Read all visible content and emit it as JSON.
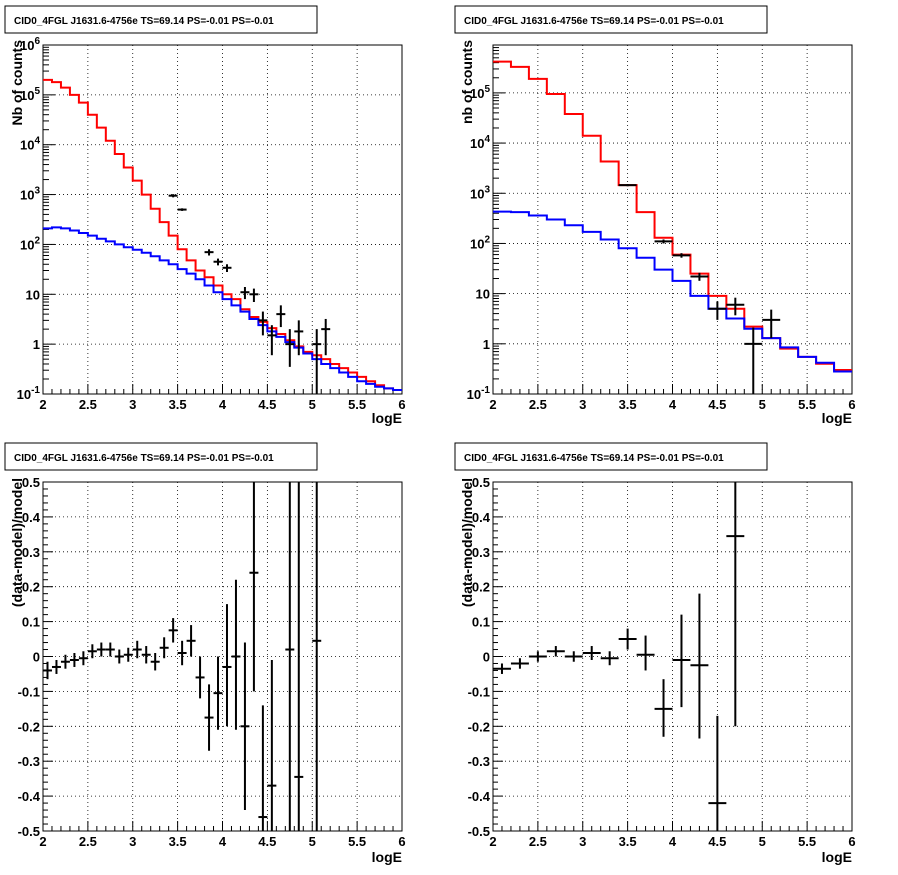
{
  "chart_data": [
    {
      "type": "line",
      "title": "CID0_4FGL J1631.6-4756e TS=69.14 PS=-0.01 PS=-0.01",
      "xlabel": "logE",
      "ylabel": "Nb of counts",
      "xlim": [
        2,
        6
      ],
      "ylim": [
        0.1,
        1000000
      ],
      "log_y": true,
      "grid": true,
      "x_ticks": [
        "2",
        "2.5",
        "3",
        "3.5",
        "4",
        "4.5",
        "5",
        "5.5",
        "6"
      ],
      "y_ticks": [
        "10^{-1}",
        "1",
        "10",
        "10^{2}",
        "10^{3}",
        "10^{4}",
        "10^{5}",
        "10^{6}"
      ],
      "series": [
        {
          "color": "#ff0000",
          "kind": "step",
          "bin_edges": [
            2.0,
            2.1,
            2.2,
            2.3,
            2.4,
            2.5,
            2.6,
            2.7,
            2.8,
            2.9,
            3.0,
            3.1,
            3.2,
            3.3,
            3.4,
            3.5,
            3.6,
            3.7,
            3.8,
            3.9,
            4.0,
            4.1,
            4.2,
            4.3,
            4.4,
            4.5,
            4.6,
            4.7,
            4.8,
            4.9,
            5.0,
            5.1,
            5.2,
            5.3,
            5.4,
            5.5,
            5.6,
            5.7,
            5.8,
            5.9,
            6.0
          ],
          "values": [
            200000,
            180000,
            140000,
            100000,
            70000,
            40000,
            22000,
            12000,
            6500,
            3500,
            1900,
            1000,
            520,
            280,
            150,
            80,
            48,
            30,
            22,
            15,
            10,
            8,
            5,
            3.5,
            2.8,
            2.1,
            1.6,
            1.2,
            0.9,
            0.7,
            0.6,
            0.5,
            0.4,
            0.33,
            0.27,
            0.22,
            0.18,
            0.15,
            0.13,
            0.12
          ]
        },
        {
          "color": "#0000ff",
          "kind": "step",
          "bin_edges": [
            2.0,
            2.1,
            2.2,
            2.3,
            2.4,
            2.5,
            2.6,
            2.7,
            2.8,
            2.9,
            3.0,
            3.1,
            3.2,
            3.3,
            3.4,
            3.5,
            3.6,
            3.7,
            3.8,
            3.9,
            4.0,
            4.1,
            4.2,
            4.3,
            4.4,
            4.5,
            4.6,
            4.7,
            4.8,
            4.9,
            5.0,
            5.1,
            5.2,
            5.3,
            5.4,
            5.5,
            5.6,
            5.7,
            5.8,
            5.9,
            6.0
          ],
          "values": [
            210,
            220,
            210,
            190,
            170,
            150,
            130,
            115,
            100,
            88,
            78,
            68,
            58,
            48,
            40,
            32,
            26,
            20,
            15,
            11,
            8,
            6,
            4.5,
            3.2,
            2.4,
            1.8,
            1.4,
            1.1,
            0.85,
            0.65,
            0.5,
            0.4,
            0.33,
            0.27,
            0.22,
            0.18,
            0.16,
            0.14,
            0.13,
            0.12
          ]
        }
      ],
      "data_points": [
        {
          "x": 3.45,
          "y": 950,
          "ylo": 880,
          "yhi": 1020,
          "xerr": 0.05
        },
        {
          "x": 3.55,
          "y": 500,
          "ylo": 470,
          "yhi": 530,
          "xerr": 0.05
        },
        {
          "x": 3.85,
          "y": 70,
          "ylo": 60,
          "yhi": 80,
          "xerr": 0.05
        },
        {
          "x": 3.95,
          "y": 45,
          "ylo": 38,
          "yhi": 52,
          "xerr": 0.05
        },
        {
          "x": 4.05,
          "y": 34,
          "ylo": 28,
          "yhi": 40,
          "xerr": 0.05
        },
        {
          "x": 4.25,
          "y": 11,
          "ylo": 8,
          "yhi": 14,
          "xerr": 0.05
        },
        {
          "x": 4.35,
          "y": 10,
          "ylo": 7,
          "yhi": 13,
          "xerr": 0.05
        },
        {
          "x": 4.45,
          "y": 3,
          "ylo": 1.5,
          "yhi": 4.5,
          "xerr": 0.05
        },
        {
          "x": 4.55,
          "y": 1.5,
          "ylo": 0.6,
          "yhi": 2.4,
          "xerr": 0.05
        },
        {
          "x": 4.65,
          "y": 4,
          "ylo": 2.2,
          "yhi": 6,
          "xerr": 0.05
        },
        {
          "x": 4.75,
          "y": 1,
          "ylo": 0.35,
          "yhi": 2,
          "xerr": 0.05
        },
        {
          "x": 4.85,
          "y": 1.8,
          "ylo": 0.6,
          "yhi": 3,
          "xerr": 0.05
        },
        {
          "x": 5.05,
          "y": 1,
          "ylo": 0.1,
          "yhi": 2,
          "xerr": 0.05
        },
        {
          "x": 5.15,
          "y": 2,
          "ylo": 0.6,
          "yhi": 3.2,
          "xerr": 0.05
        }
      ]
    },
    {
      "type": "line",
      "title": "CID0_4FGL J1631.6-4756e TS=69.14 PS=-0.01 PS=-0.01",
      "xlabel": "logE",
      "ylabel": "nb of counts",
      "xlim": [
        2,
        6
      ],
      "ylim": [
        0.1,
        900000
      ],
      "log_y": true,
      "grid": true,
      "x_ticks": [
        "2",
        "2.5",
        "3",
        "3.5",
        "4",
        "4.5",
        "5",
        "5.5",
        "6"
      ],
      "y_ticks": [
        "10^{-1}",
        "1",
        "10",
        "10^{2}",
        "10^{3}",
        "10^{4}",
        "10^{5}"
      ],
      "series": [
        {
          "color": "#ff0000",
          "kind": "step",
          "bin_edges": [
            2.0,
            2.2,
            2.4,
            2.6,
            2.8,
            3.0,
            3.2,
            3.4,
            3.6,
            3.8,
            4.0,
            4.2,
            4.4,
            4.6,
            4.8,
            5.0,
            5.2,
            5.4,
            5.6,
            5.8,
            6.0
          ],
          "values": [
            420000,
            330000,
            190000,
            95000,
            38000,
            14000,
            4300,
            1450,
            420,
            130,
            60,
            25,
            9,
            5,
            2.2,
            1.3,
            0.8,
            0.55,
            0.4,
            0.3
          ]
        },
        {
          "color": "#0000ff",
          "kind": "step",
          "bin_edges": [
            2.0,
            2.2,
            2.4,
            2.6,
            2.8,
            3.0,
            3.2,
            3.4,
            3.6,
            3.8,
            4.0,
            4.2,
            4.4,
            4.6,
            4.8,
            5.0,
            5.2,
            5.4,
            5.6,
            5.8,
            6.0
          ],
          "values": [
            430,
            420,
            360,
            300,
            230,
            170,
            120,
            80,
            52,
            30,
            18,
            9,
            5,
            3.2,
            2,
            1.3,
            0.85,
            0.55,
            0.42,
            0.28
          ]
        }
      ],
      "data_points": [
        {
          "x": 3.5,
          "y": 1450,
          "ylo": 1380,
          "yhi": 1520,
          "xerr": 0.1
        },
        {
          "x": 3.9,
          "y": 110,
          "ylo": 100,
          "yhi": 120,
          "xerr": 0.1
        },
        {
          "x": 4.1,
          "y": 58,
          "ylo": 52,
          "yhi": 64,
          "xerr": 0.1
        },
        {
          "x": 4.3,
          "y": 22,
          "ylo": 18,
          "yhi": 26,
          "xerr": 0.1
        },
        {
          "x": 4.5,
          "y": 5,
          "ylo": 3,
          "yhi": 7,
          "xerr": 0.1
        },
        {
          "x": 4.7,
          "y": 6,
          "ylo": 3.7,
          "yhi": 8.3,
          "xerr": 0.1
        },
        {
          "x": 4.9,
          "y": 1,
          "ylo": 0.1,
          "yhi": 2.1,
          "xerr": 0.1
        },
        {
          "x": 5.1,
          "y": 3,
          "ylo": 1.3,
          "yhi": 4.8,
          "xerr": 0.1
        }
      ]
    },
    {
      "type": "scatter",
      "title": "CID0_4FGL J1631.6-4756e TS=69.14 PS=-0.01 PS=-0.01",
      "xlabel": "logE",
      "ylabel": "(data-model)/model",
      "xlim": [
        2,
        6
      ],
      "ylim": [
        -0.5,
        0.5
      ],
      "log_y": false,
      "grid": true,
      "x_ticks": [
        "2",
        "2.5",
        "3",
        "3.5",
        "4",
        "4.5",
        "5",
        "5.5",
        "6"
      ],
      "y_ticks": [
        "-0.5",
        "-0.4",
        "-0.3",
        "-0.2",
        "-0.1",
        "0",
        "0.1",
        "0.2",
        "0.3",
        "0.4",
        "0.5"
      ],
      "data_points": [
        {
          "x": 2.05,
          "y": -0.04,
          "ylo": -0.065,
          "yhi": -0.015,
          "xerr": 0.05
        },
        {
          "x": 2.15,
          "y": -0.03,
          "ylo": -0.05,
          "yhi": -0.01,
          "xerr": 0.05
        },
        {
          "x": 2.25,
          "y": -0.015,
          "ylo": -0.035,
          "yhi": 0.005,
          "xerr": 0.05
        },
        {
          "x": 2.35,
          "y": -0.01,
          "ylo": -0.03,
          "yhi": 0.01,
          "xerr": 0.05
        },
        {
          "x": 2.45,
          "y": -0.005,
          "ylo": -0.025,
          "yhi": 0.015,
          "xerr": 0.05
        },
        {
          "x": 2.55,
          "y": 0.015,
          "ylo": -0.005,
          "yhi": 0.035,
          "xerr": 0.05
        },
        {
          "x": 2.65,
          "y": 0.02,
          "ylo": 0.0,
          "yhi": 0.04,
          "xerr": 0.05
        },
        {
          "x": 2.75,
          "y": 0.02,
          "ylo": 0.0,
          "yhi": 0.04,
          "xerr": 0.05
        },
        {
          "x": 2.85,
          "y": 0.0,
          "ylo": -0.02,
          "yhi": 0.02,
          "xerr": 0.05
        },
        {
          "x": 2.95,
          "y": 0.005,
          "ylo": -0.015,
          "yhi": 0.025,
          "xerr": 0.05
        },
        {
          "x": 3.05,
          "y": 0.02,
          "ylo": -0.005,
          "yhi": 0.045,
          "xerr": 0.05
        },
        {
          "x": 3.15,
          "y": 0.005,
          "ylo": -0.02,
          "yhi": 0.03,
          "xerr": 0.05
        },
        {
          "x": 3.25,
          "y": -0.015,
          "ylo": -0.04,
          "yhi": 0.01,
          "xerr": 0.05
        },
        {
          "x": 3.35,
          "y": 0.025,
          "ylo": -0.005,
          "yhi": 0.055,
          "xerr": 0.05
        },
        {
          "x": 3.45,
          "y": 0.075,
          "ylo": 0.04,
          "yhi": 0.11,
          "xerr": 0.05
        },
        {
          "x": 3.55,
          "y": 0.01,
          "ylo": -0.025,
          "yhi": 0.045,
          "xerr": 0.05
        },
        {
          "x": 3.65,
          "y": 0.045,
          "ylo": 0.0,
          "yhi": 0.09,
          "xerr": 0.05
        },
        {
          "x": 3.75,
          "y": -0.06,
          "ylo": -0.12,
          "yhi": 0.0,
          "xerr": 0.05
        },
        {
          "x": 3.85,
          "y": -0.175,
          "ylo": -0.27,
          "yhi": -0.08,
          "xerr": 0.05
        },
        {
          "x": 3.95,
          "y": -0.105,
          "ylo": -0.21,
          "yhi": 0.0,
          "xerr": 0.05
        },
        {
          "x": 4.05,
          "y": -0.03,
          "ylo": -0.2,
          "yhi": 0.15,
          "xerr": 0.05
        },
        {
          "x": 4.15,
          "y": 0.0,
          "ylo": -0.21,
          "yhi": 0.22,
          "xerr": 0.05
        },
        {
          "x": 4.25,
          "y": -0.2,
          "ylo": -0.44,
          "yhi": 0.04,
          "xerr": 0.05
        },
        {
          "x": 4.35,
          "y": 0.24,
          "ylo": -0.1,
          "yhi": 0.5,
          "xerr": 0.05
        },
        {
          "x": 4.45,
          "y": -0.46,
          "ylo": -0.5,
          "yhi": -0.14,
          "xerr": 0.05
        },
        {
          "x": 4.55,
          "y": -0.37,
          "ylo": -0.5,
          "yhi": -0.01,
          "xerr": 0.05
        },
        {
          "x": 4.75,
          "y": 0.02,
          "ylo": -0.5,
          "yhi": 0.5,
          "xerr": 0.05
        },
        {
          "x": 4.85,
          "y": -0.345,
          "ylo": -0.5,
          "yhi": 0.5,
          "xerr": 0.05
        },
        {
          "x": 5.05,
          "y": 0.045,
          "ylo": -0.5,
          "yhi": 0.5,
          "xerr": 0.05
        }
      ]
    },
    {
      "type": "scatter",
      "title": "CID0_4FGL J1631.6-4756e TS=69.14 PS=-0.01 PS=-0.01",
      "xlabel": "logE",
      "ylabel": "(data-model)/model",
      "xlim": [
        2,
        6
      ],
      "ylim": [
        -0.5,
        0.5
      ],
      "log_y": false,
      "grid": true,
      "x_ticks": [
        "2",
        "2.5",
        "3",
        "3.5",
        "4",
        "4.5",
        "5",
        "5.5",
        "6"
      ],
      "y_ticks": [
        "-0.5",
        "-0.4",
        "-0.3",
        "-0.2",
        "-0.1",
        "0",
        "0.1",
        "0.2",
        "0.3",
        "0.4",
        "0.5"
      ],
      "data_points": [
        {
          "x": 2.1,
          "y": -0.035,
          "ylo": -0.05,
          "yhi": -0.02,
          "xerr": 0.1
        },
        {
          "x": 2.3,
          "y": -0.02,
          "ylo": -0.035,
          "yhi": -0.005,
          "xerr": 0.1
        },
        {
          "x": 2.5,
          "y": 0.0,
          "ylo": -0.015,
          "yhi": 0.015,
          "xerr": 0.1
        },
        {
          "x": 2.7,
          "y": 0.015,
          "ylo": 0.0,
          "yhi": 0.03,
          "xerr": 0.1
        },
        {
          "x": 2.9,
          "y": 0.0,
          "ylo": -0.015,
          "yhi": 0.015,
          "xerr": 0.1
        },
        {
          "x": 3.1,
          "y": 0.01,
          "ylo": -0.01,
          "yhi": 0.03,
          "xerr": 0.1
        },
        {
          "x": 3.3,
          "y": -0.005,
          "ylo": -0.025,
          "yhi": 0.015,
          "xerr": 0.1
        },
        {
          "x": 3.5,
          "y": 0.05,
          "ylo": 0.02,
          "yhi": 0.08,
          "xerr": 0.1
        },
        {
          "x": 3.7,
          "y": 0.005,
          "ylo": -0.04,
          "yhi": 0.06,
          "xerr": 0.1
        },
        {
          "x": 3.9,
          "y": -0.15,
          "ylo": -0.23,
          "yhi": -0.065,
          "xerr": 0.1
        },
        {
          "x": 4.1,
          "y": -0.01,
          "ylo": -0.145,
          "yhi": 0.12,
          "xerr": 0.1
        },
        {
          "x": 4.3,
          "y": -0.025,
          "ylo": -0.235,
          "yhi": 0.18,
          "xerr": 0.1
        },
        {
          "x": 4.5,
          "y": -0.42,
          "ylo": -0.5,
          "yhi": -0.17,
          "xerr": 0.1
        },
        {
          "x": 4.7,
          "y": 0.345,
          "ylo": -0.2,
          "yhi": 0.5,
          "xerr": 0.1
        }
      ]
    }
  ]
}
